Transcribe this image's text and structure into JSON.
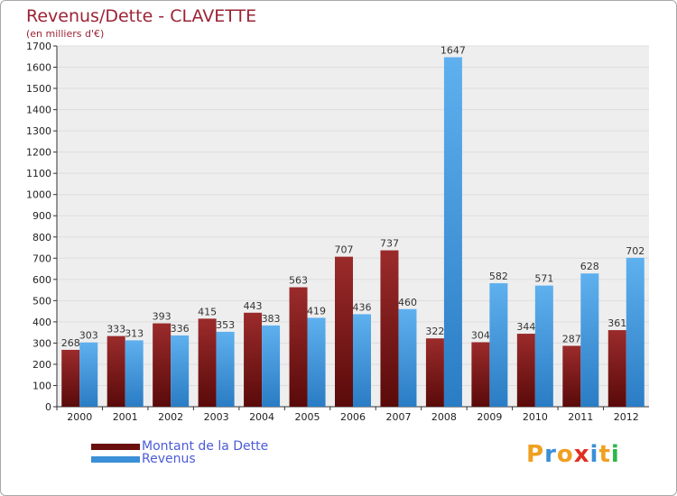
{
  "title": "Revenus/Dette - CLAVETTE",
  "subtitle": "(en milliers d'€)",
  "colors": {
    "debt": "#7a1414",
    "debt_light": "#9b2b2b",
    "revenue": "#3a8fd6",
    "revenue_light": "#5fb0ee",
    "axis_text": "#222222",
    "grid": "#dddddd",
    "plot_bg": "#eeeeee",
    "title": "#9b2335",
    "legend_text": "#4b5bd8"
  },
  "legend": {
    "debt_label": "Montant de la Dette",
    "revenue_label": "Revenus"
  },
  "logo": {
    "letters": [
      "P",
      "r",
      "o",
      "x",
      "i",
      "t",
      "i"
    ],
    "colors": [
      "#f0a020",
      "#3a8fd6",
      "#f0a020",
      "#e03020",
      "#3a8fd6",
      "#f0a020",
      "#2db84a"
    ]
  },
  "chart_data": {
    "type": "bar",
    "title": "Revenus/Dette - CLAVETTE",
    "subtitle": "(en milliers d'€)",
    "categories": [
      "2000",
      "2001",
      "2002",
      "2003",
      "2004",
      "2005",
      "2006",
      "2007",
      "2008",
      "2009",
      "2010",
      "2011",
      "2012"
    ],
    "series": [
      {
        "name": "Montant de la Dette",
        "values": [
          268,
          333,
          393,
          415,
          443,
          563,
          707,
          737,
          322,
          304,
          344,
          287,
          361
        ]
      },
      {
        "name": "Revenus",
        "values": [
          303,
          313,
          336,
          353,
          383,
          419,
          436,
          460,
          1647,
          582,
          571,
          628,
          702
        ]
      }
    ],
    "ylim": [
      0,
      1700
    ],
    "yticks": [
      0,
      100,
      200,
      300,
      400,
      500,
      600,
      700,
      800,
      900,
      1000,
      1100,
      1200,
      1300,
      1400,
      1500,
      1600,
      1700
    ],
    "grid": true,
    "legend_position": "bottom-left"
  }
}
